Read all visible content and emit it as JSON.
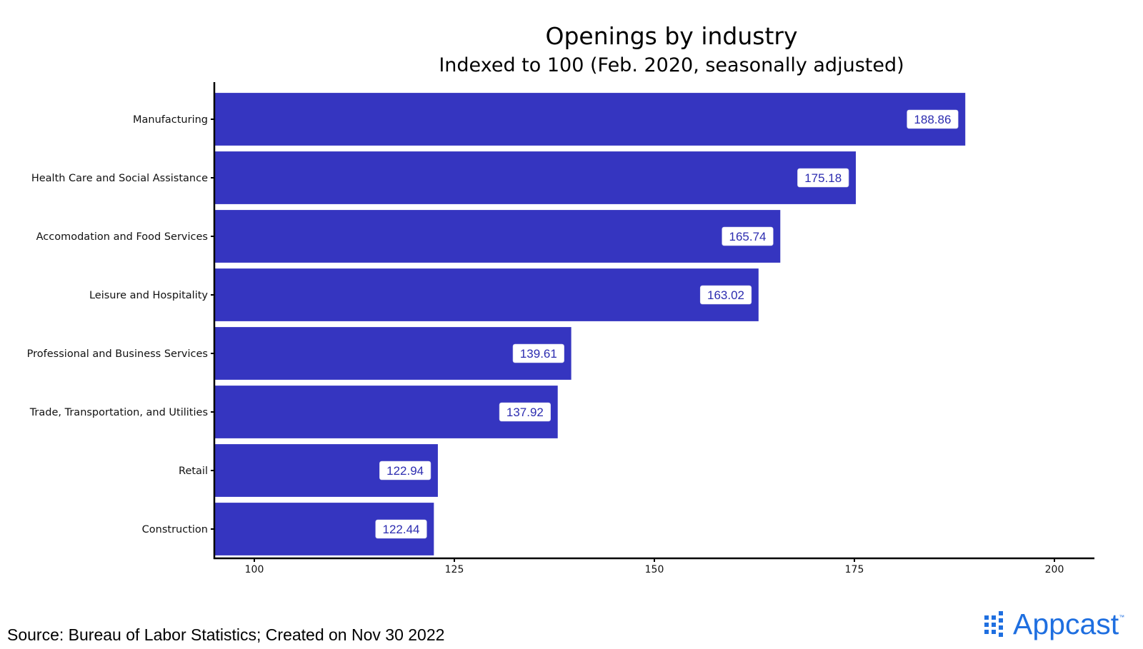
{
  "chart_data": {
    "type": "bar",
    "orientation": "horizontal",
    "title": "Openings by industry",
    "subtitle": "Indexed to 100 (Feb. 2020, seasonally adjusted)",
    "categories": [
      "Manufacturing",
      "Health Care and Social Assistance",
      "Accomodation and Food Services",
      "Leisure and Hospitality",
      "Professional and Business Services",
      "Trade, Transportation, and Utilities",
      "Retail",
      "Construction"
    ],
    "values": [
      188.86,
      175.18,
      165.74,
      163.02,
      139.61,
      137.92,
      122.94,
      122.44
    ],
    "value_labels": [
      "188.86",
      "175.18",
      "165.74",
      "163.02",
      "139.61",
      "137.92",
      "122.94",
      "122.44"
    ],
    "xticks": [
      100,
      125,
      150,
      175,
      200
    ],
    "xtick_labels": [
      "100",
      "125",
      "150",
      "175",
      "200"
    ],
    "xlim": [
      95,
      205
    ],
    "xlabel": "",
    "ylabel": "",
    "grid": false,
    "legend": "none",
    "bar_color": "#3535c0",
    "label_text_color": "#2c2cb0"
  },
  "footer": {
    "source": "Source: Bureau of Labor Statistics; Created on Nov 30 2022",
    "logo_text": "Appcast",
    "logo_tm": "™",
    "logo_color": "#1f6fe0"
  }
}
